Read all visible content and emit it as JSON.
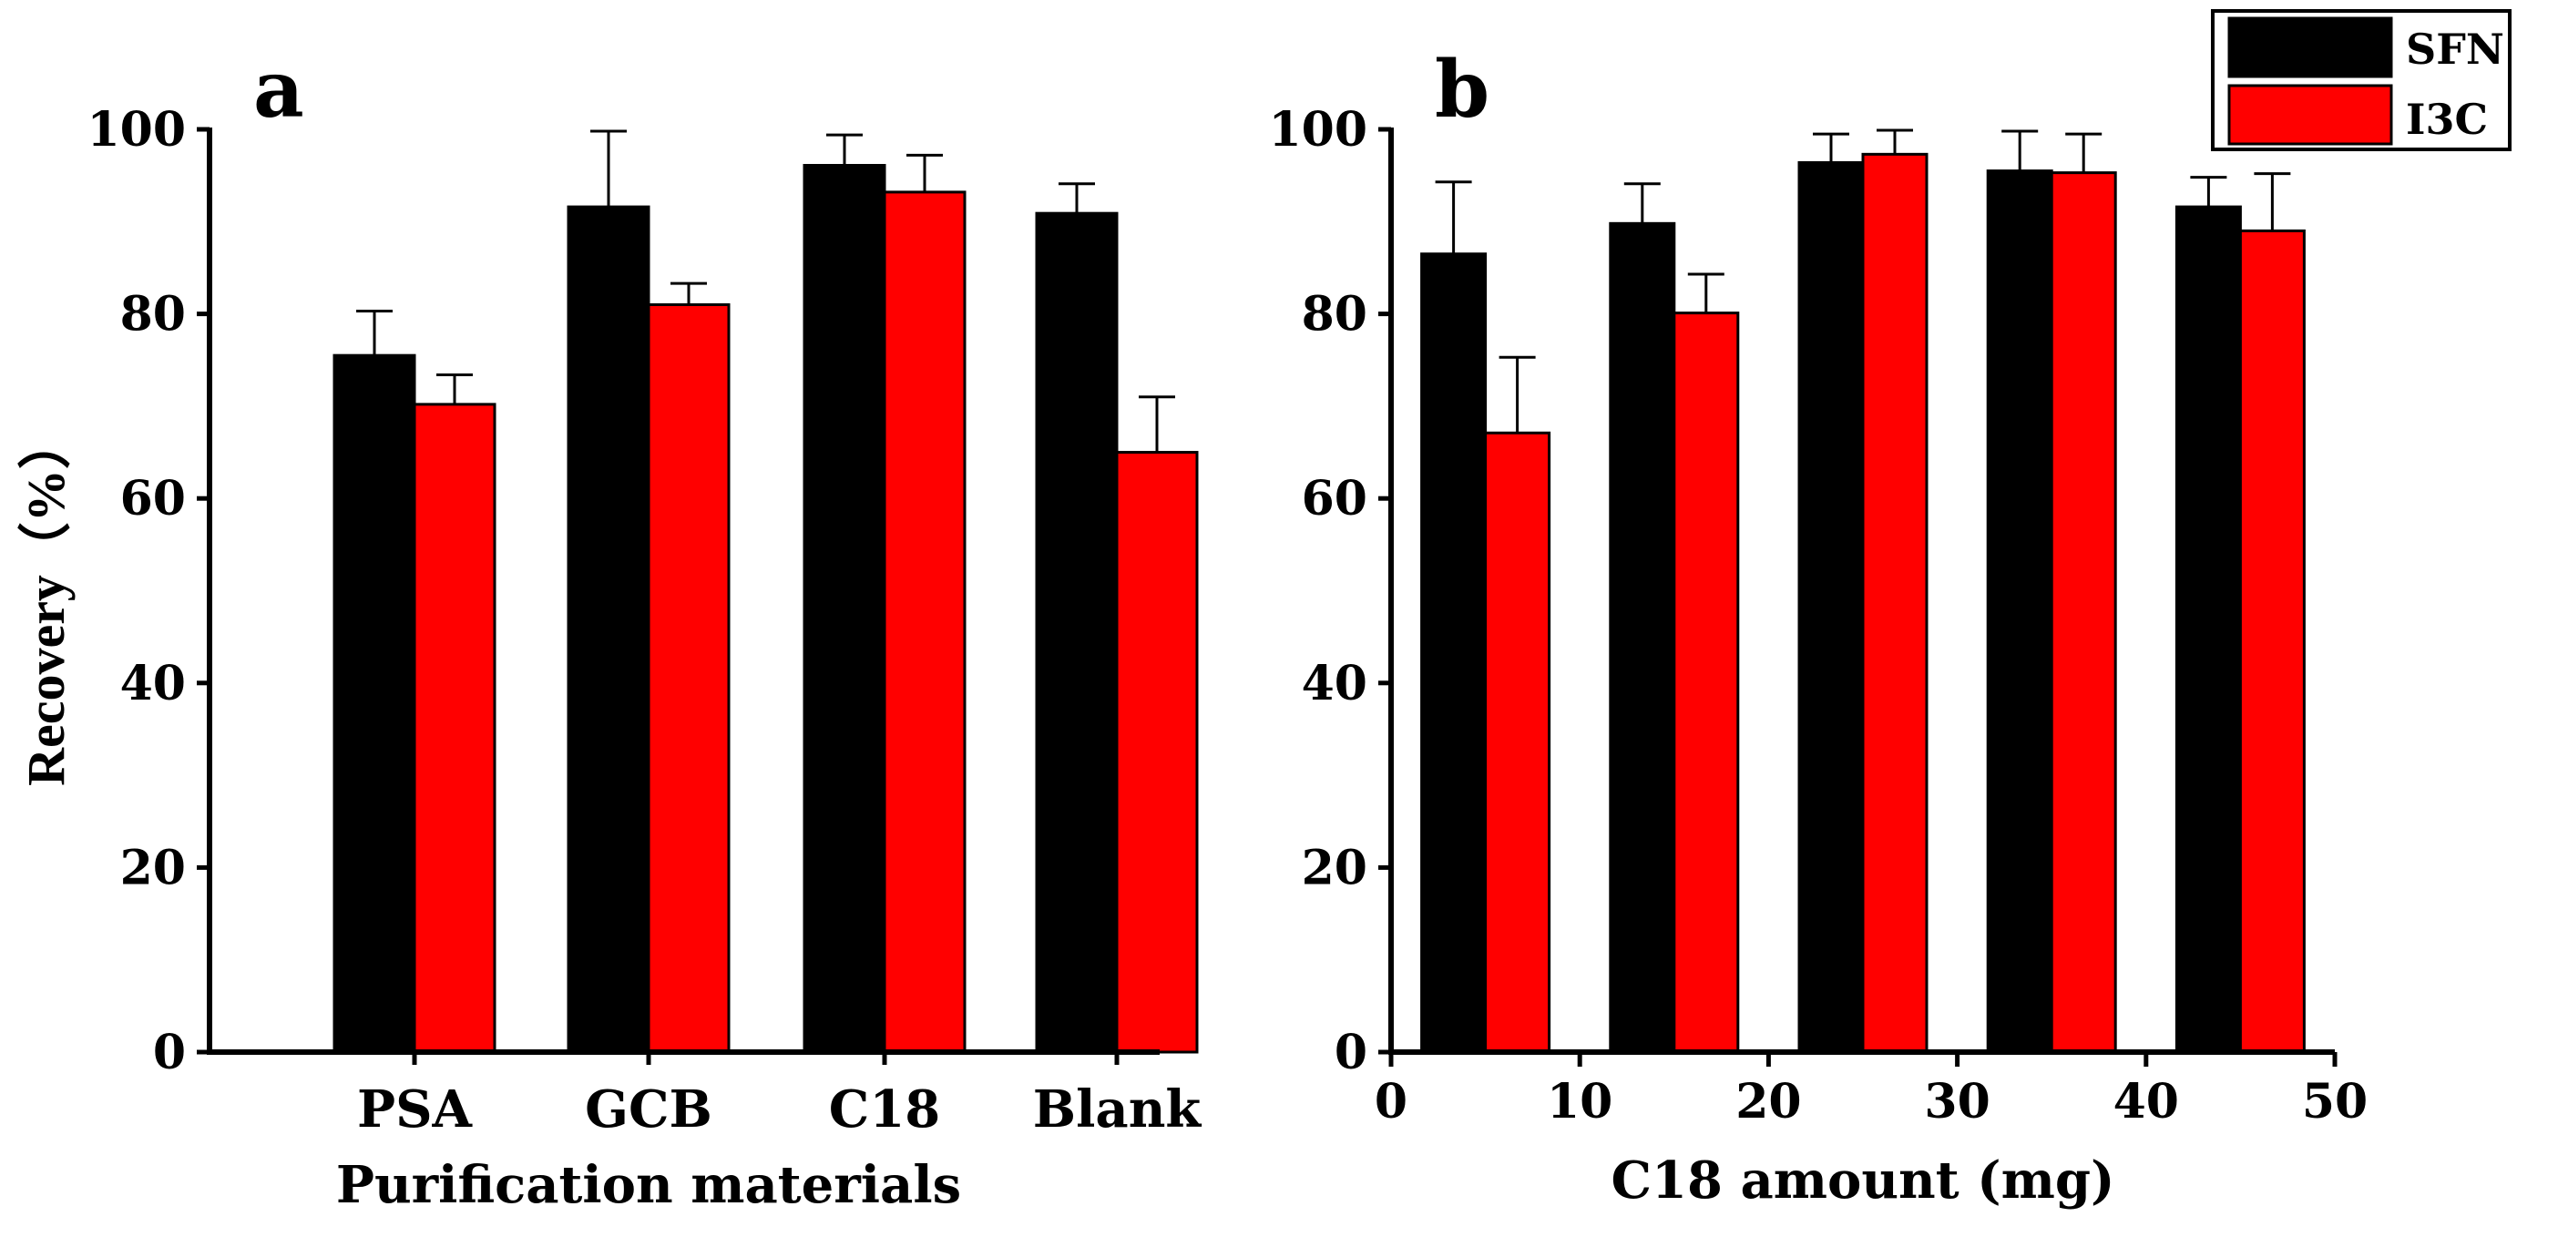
{
  "colors": {
    "SFN": "#000000",
    "I3C": "#ff0000",
    "axis": "#000000"
  },
  "legend": {
    "position": "top-right",
    "entries": [
      "SFN",
      "I3C"
    ]
  },
  "chart_data": [
    {
      "type": "bar",
      "panel_label": "a",
      "categories": [
        "PSA",
        "GCB",
        "C18",
        "Blank"
      ],
      "series": [
        {
          "name": "SFN",
          "values": [
            75.5,
            91.6,
            96.1,
            90.9
          ],
          "errors": [
            4.8,
            8.2,
            3.3,
            3.2
          ]
        },
        {
          "name": "I3C",
          "values": [
            70.2,
            81.0,
            93.2,
            65.0
          ],
          "errors": [
            3.2,
            2.3,
            4.0,
            6.0
          ]
        }
      ],
      "xlabel": "Purification materials",
      "ylabel": "Recovery（%）",
      "ylim": [
        0,
        100
      ],
      "yticks": [
        "0",
        "20",
        "40",
        "60",
        "80",
        "100"
      ]
    },
    {
      "type": "bar",
      "panel_label": "b",
      "x": [
        5,
        15,
        25,
        35,
        45
      ],
      "series": [
        {
          "name": "SFN",
          "values": [
            86.5,
            89.8,
            96.4,
            95.5,
            91.6
          ],
          "errors": [
            7.8,
            4.3,
            3.1,
            4.3,
            3.2
          ]
        },
        {
          "name": "I3C",
          "values": [
            67.1,
            80.1,
            97.3,
            95.3,
            89.0
          ],
          "errors": [
            8.2,
            4.2,
            2.6,
            4.2,
            6.2
          ]
        }
      ],
      "xlabel": "C18 amount (mg)",
      "ylabel": "",
      "xlim": [
        0,
        50
      ],
      "ylim": [
        0,
        100
      ],
      "xticks": [
        "0",
        "10",
        "20",
        "30",
        "40",
        "50"
      ],
      "yticks": [
        "0",
        "20",
        "40",
        "60",
        "80",
        "100"
      ]
    }
  ]
}
